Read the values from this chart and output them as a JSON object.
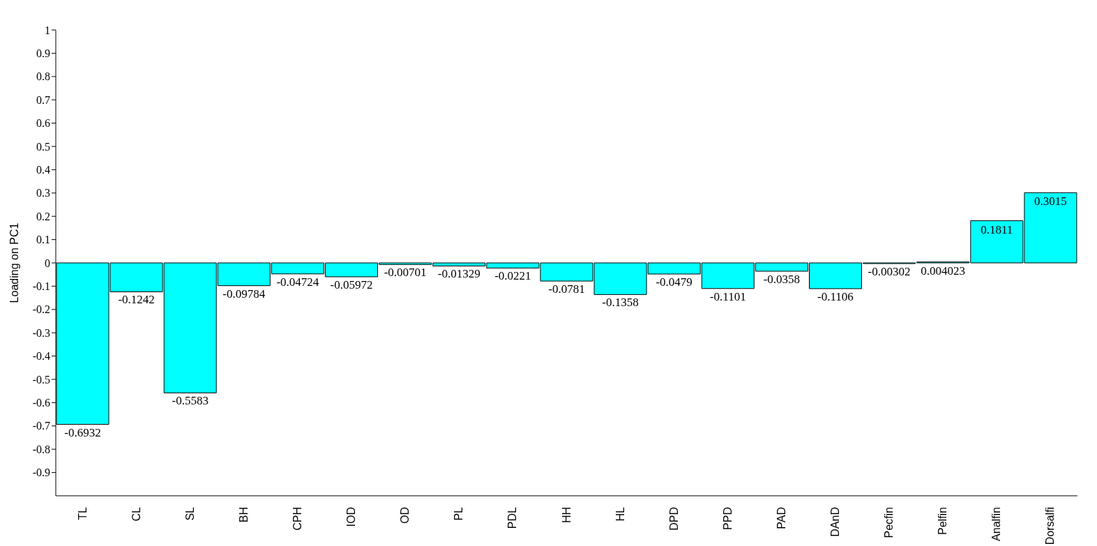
{
  "chart_data": {
    "type": "bar",
    "ylabel": "Loading on  PC1",
    "categories": [
      "TL",
      "CL",
      "SL",
      "BH",
      "CPH",
      "IOD",
      "OD",
      "PL",
      "PDL",
      "HH",
      "HL",
      "DPD",
      "PPD",
      "PAD",
      "DAnD",
      "Pecfin",
      "Pelfin",
      "Analfin",
      "Dorsalfi"
    ],
    "values": [
      -0.6932,
      -0.1242,
      -0.5583,
      -0.09784,
      -0.04724,
      -0.05972,
      -0.00701,
      -0.01329,
      -0.0221,
      -0.0781,
      -0.1358,
      -0.0479,
      -0.1101,
      -0.0358,
      -0.1106,
      -0.00302,
      0.004023,
      0.1811,
      0.3015
    ],
    "color": "#00ffff",
    "ylim": [
      -1,
      1
    ],
    "yticks": [
      -0.9,
      -0.8,
      -0.7,
      -0.6,
      -0.5,
      -0.4,
      -0.3,
      -0.2,
      -0.1,
      0,
      0.1,
      0.2,
      0.3,
      0.4,
      0.5,
      0.6,
      0.7,
      0.8,
      0.9,
      1
    ],
    "data_labels": true,
    "grid": false
  }
}
